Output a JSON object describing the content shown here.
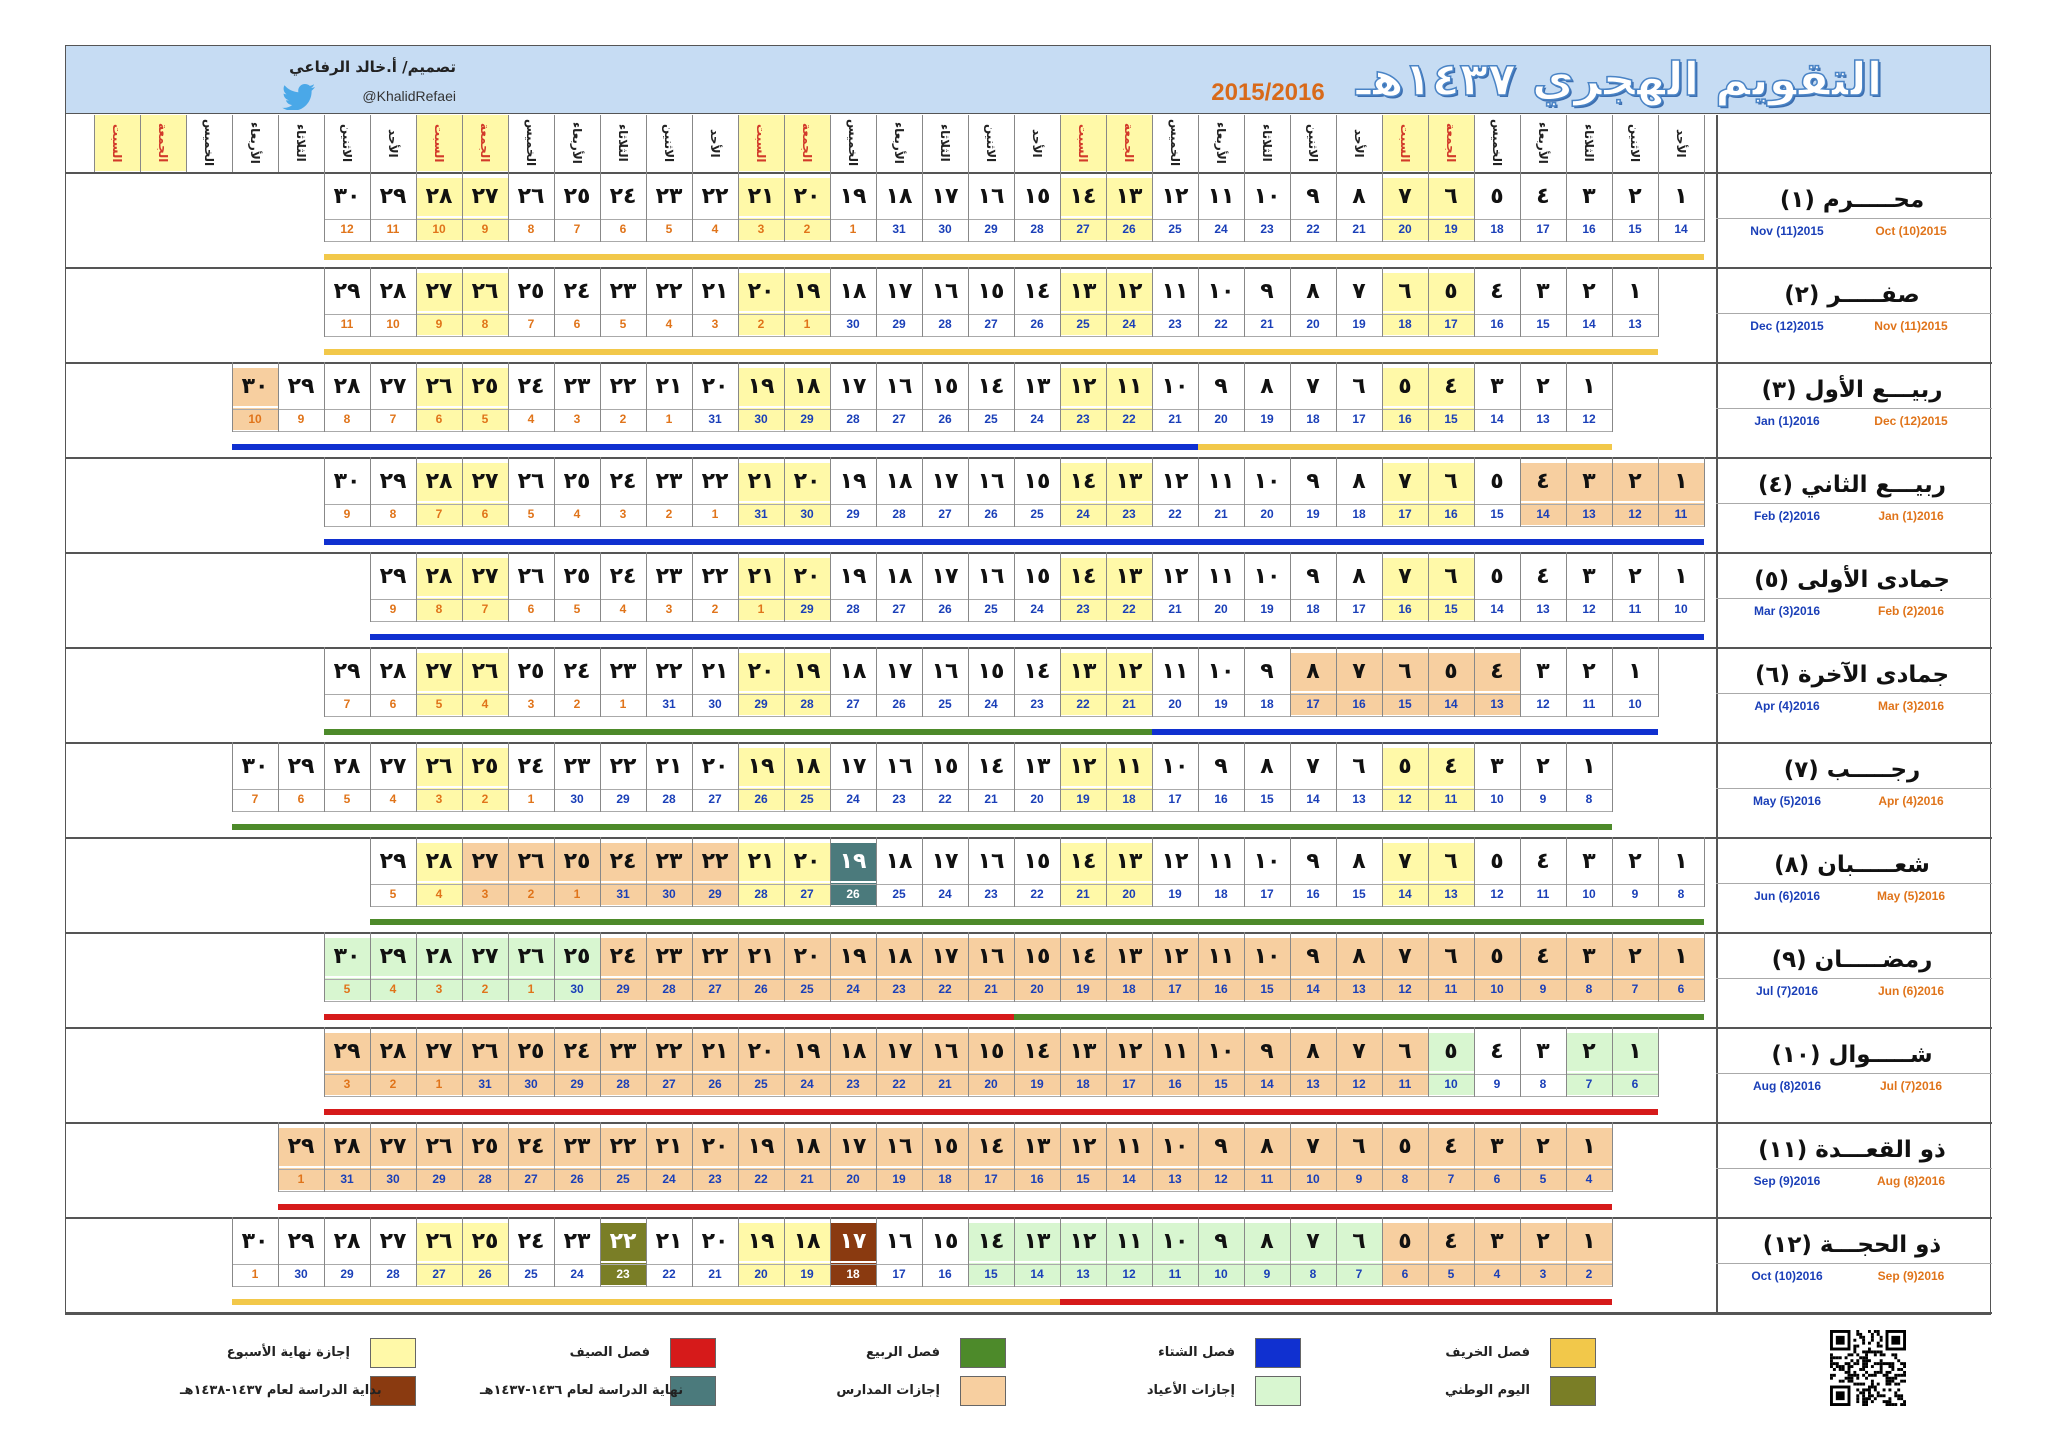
{
  "header": {
    "title": "التقويم الهجري ١٤٣٧هـ",
    "years": "2015/2016",
    "credit": "تصميم/ أ.خالد الرفاعي",
    "handle": "@KhalidRefaei"
  },
  "day_names": [
    "الأحد",
    "الاثنين",
    "الثلاثاء",
    "الأربعاء",
    "الخميس",
    "الجمعة",
    "السبت"
  ],
  "colors": {
    "weekend": "#fff9a8",
    "school_holiday": "#f7cfa0",
    "eid_holiday": "#d8f6d0",
    "study_end": "#4b7a7c",
    "study_start": "#8a3a10",
    "national_day": "#7a7e26",
    "autumn": "#f2c84a",
    "winter": "#1030d0",
    "spring": "#4d8a2a",
    "summer": "#d61a1a",
    "gregorian_blue": "#1a3fb8",
    "gregorian_orange": "#e0741a"
  },
  "months": [
    {
      "name": "محـــــرم (١)",
      "greg_right": "Oct (10)2015",
      "greg_left": "Nov (11)2015",
      "start_col": 0,
      "days": 30,
      "g_start": 14,
      "g_len_first": 31,
      "holidays": [],
      "eid": [],
      "specials": {},
      "bands": [
        {
          "from": 0,
          "to": 29,
          "color": "autumn"
        }
      ]
    },
    {
      "name": "صفـــــر (٢)",
      "greg_right": "Nov (11)2015",
      "greg_left": "Dec (12)2015",
      "start_col": 1,
      "days": 29,
      "g_start": 13,
      "g_len_first": 30,
      "holidays": [],
      "eid": [],
      "specials": {},
      "bands": [
        {
          "from": 0,
          "to": 28,
          "color": "autumn"
        }
      ]
    },
    {
      "name": "ربيـــع الأول (٣)",
      "greg_right": "Dec (12)2015",
      "greg_left": "Jan (1)2016",
      "start_col": 2,
      "days": 30,
      "g_start": 12,
      "g_len_first": 31,
      "holidays": [
        29
      ],
      "eid": [],
      "specials": {},
      "bands": [
        {
          "from": 0,
          "to": 8,
          "color": "autumn"
        },
        {
          "from": 9,
          "to": 29,
          "color": "winter"
        }
      ]
    },
    {
      "name": "ربيـــع الثاني (٤)",
      "greg_right": "Jan (1)2016",
      "greg_left": "Feb (2)2016",
      "start_col": -1,
      "days": 30,
      "g_start": 11,
      "g_len_first": 31,
      "holidays": [
        0,
        1,
        2,
        3
      ],
      "eid": [],
      "specials": {},
      "bands": [
        {
          "from": 0,
          "to": 29,
          "color": "winter"
        }
      ]
    },
    {
      "name": "جمادى الأولى (٥)",
      "greg_right": "Feb (2)2016",
      "greg_left": "Mar (3)2016",
      "start_col": 0,
      "days": 29,
      "g_start": 10,
      "g_len_first": 29,
      "holidays": [],
      "eid": [],
      "specials": {},
      "bands": [
        {
          "from": 0,
          "to": 28,
          "color": "winter"
        }
      ]
    },
    {
      "name": "جمادى الآخرة (٦)",
      "greg_right": "Mar (3)2016",
      "greg_left": "Apr (4)2016",
      "start_col": 1,
      "days": 29,
      "g_start": 10,
      "g_len_first": 31,
      "holidays": [
        3,
        4,
        5,
        6,
        7
      ],
      "eid": [],
      "specials": {},
      "bands": [
        {
          "from": 0,
          "to": 10,
          "color": "winter"
        },
        {
          "from": 11,
          "to": 28,
          "color": "spring"
        }
      ]
    },
    {
      "name": "رجـــــب (٧)",
      "greg_right": "Apr (4)2016",
      "greg_left": "May (5)2016",
      "start_col": 2,
      "days": 30,
      "g_start": 8,
      "g_len_first": 30,
      "holidays": [],
      "eid": [],
      "specials": {},
      "bands": [
        {
          "from": 0,
          "to": 29,
          "color": "spring"
        }
      ]
    },
    {
      "name": "شعـــــبان (٨)",
      "greg_right": "May (5)2016",
      "greg_left": "Jun (6)2016",
      "start_col": -1,
      "days": 29,
      "g_start": 8,
      "g_len_first": 31,
      "holidays": [
        21,
        22,
        23,
        24,
        25,
        26
      ],
      "eid": [],
      "specials": {
        "18": "study_end"
      },
      "bands": [
        {
          "from": 0,
          "to": 28,
          "color": "spring"
        }
      ]
    },
    {
      "name": "رمضـــــان (٩)",
      "greg_right": "Jun (6)2016",
      "greg_left": "Jul (7)2016",
      "start_col": -1,
      "days": 30,
      "g_start": 6,
      "g_len_first": 30,
      "holidays": [
        0,
        1,
        2,
        3,
        4,
        5,
        6,
        7,
        8,
        9,
        10,
        11,
        12,
        13,
        14,
        15,
        16,
        17,
        18,
        19,
        20,
        21,
        22,
        23,
        24
      ],
      "eid": [
        24,
        25,
        26,
        27,
        28,
        29
      ],
      "specials": {},
      "bands": [
        {
          "from": 0,
          "to": 14,
          "color": "spring"
        },
        {
          "from": 15,
          "to": 29,
          "color": "summer"
        }
      ]
    },
    {
      "name": "شـــــوال (١٠)",
      "greg_right": "Jul (7)2016",
      "greg_left": "Aug (8)2016",
      "start_col": 1,
      "days": 29,
      "g_start": 6,
      "g_len_first": 31,
      "holidays": [
        5,
        6,
        7,
        8,
        9,
        10,
        11,
        12,
        13,
        14,
        15,
        16,
        17,
        18,
        19,
        20,
        21,
        22,
        23,
        24,
        25,
        26,
        27,
        28
      ],
      "eid": [
        0,
        1,
        4
      ],
      "specials": {},
      "bands": [
        {
          "from": 0,
          "to": 28,
          "color": "summer"
        }
      ]
    },
    {
      "name": "ذو القعـــدة (١١)",
      "greg_right": "Aug (8)2016",
      "greg_left": "Sep (9)2016",
      "start_col": 2,
      "days": 29,
      "g_start": 4,
      "g_len_first": 31,
      "holidays": [
        0,
        1,
        2,
        3,
        4,
        5,
        6,
        7,
        8,
        9,
        10,
        11,
        12,
        13,
        14,
        15,
        16,
        17,
        18,
        19,
        20,
        21,
        22,
        23,
        24,
        25,
        26,
        27,
        28
      ],
      "eid": [],
      "specials": {},
      "bands": [
        {
          "from": 0,
          "to": 28,
          "color": "summer"
        }
      ]
    },
    {
      "name": "ذو الحجـــة (١٢)",
      "greg_right": "Sep (9)2016",
      "greg_left": "Oct (10)2016",
      "start_col": 2,
      "days": 30,
      "g_start": 2,
      "g_len_first": 30,
      "holidays": [
        0,
        1,
        2,
        3,
        4
      ],
      "eid": [
        5,
        6,
        7,
        8,
        9,
        10,
        11,
        12,
        13
      ],
      "specials": {
        "16": "study_start",
        "21": "national_day"
      },
      "bands": [
        {
          "from": 0,
          "to": 11,
          "color": "summer"
        },
        {
          "from": 12,
          "to": 29,
          "color": "autumn"
        }
      ]
    }
  ],
  "legend": [
    {
      "label": "فصل الخريف",
      "color": "autumn"
    },
    {
      "label": "فصل الشتاء",
      "color": "winter"
    },
    {
      "label": "فصل الربيع",
      "color": "spring"
    },
    {
      "label": "فصل الصيف",
      "color": "summer"
    },
    {
      "label": "إجازة نهاية الأسبوع",
      "color": "weekend"
    },
    {
      "label": "اليوم الوطني",
      "color": "national_day"
    },
    {
      "label": "إجازات الأعياد",
      "color": "eid_holiday"
    },
    {
      "label": "إجازات المدارس",
      "color": "school_holiday"
    },
    {
      "label": "نهاية الدراسة لعام ١٤٣٦-١٤٣٧هـ",
      "color": "study_end"
    },
    {
      "label": "بداية الدراسة لعام ١٤٣٧-١٤٣٨هـ",
      "color": "study_start"
    }
  ]
}
